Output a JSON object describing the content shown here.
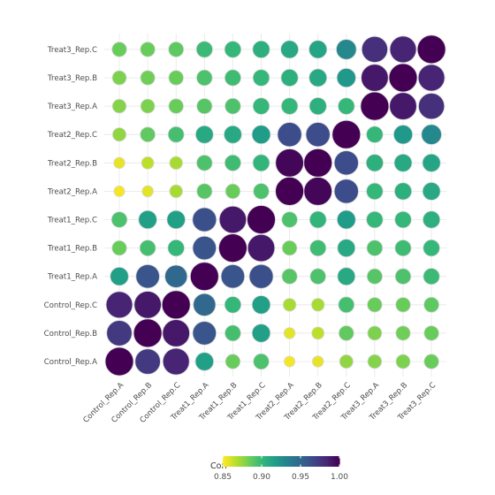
{
  "chart_data": {
    "type": "heatmap",
    "style": "bubble correlation matrix",
    "title": "",
    "xlabel": "",
    "ylabel": "",
    "grid": true,
    "x_categories": [
      "Control_Rep.A",
      "Control_Rep.B",
      "Control_Rep.C",
      "Treat1_Rep.A",
      "Treat1_Rep.B",
      "Treat1_Rep.C",
      "Treat2_Rep.A",
      "Treat2_Rep.B",
      "Treat2_Rep.C",
      "Treat3_Rep.A",
      "Treat3_Rep.B",
      "Treat3_Rep.C"
    ],
    "y_categories": [
      "Control_Rep.A",
      "Control_Rep.B",
      "Control_Rep.C",
      "Treat1_Rep.A",
      "Treat1_Rep.B",
      "Treat1_Rep.C",
      "Treat2_Rep.A",
      "Treat2_Rep.B",
      "Treat2_Rep.C",
      "Treat3_Rep.A",
      "Treat3_Rep.B",
      "Treat3_Rep.C"
    ],
    "values": [
      [
        1.0,
        0.975,
        0.985,
        0.915,
        0.885,
        0.893,
        0.852,
        0.855,
        0.875,
        0.878,
        0.88,
        0.885
      ],
      [
        0.975,
        1.0,
        0.99,
        0.96,
        0.895,
        0.915,
        0.856,
        0.865,
        0.887,
        0.88,
        0.883,
        0.885
      ],
      [
        0.985,
        0.99,
        1.0,
        0.95,
        0.9,
        0.915,
        0.87,
        0.87,
        0.895,
        0.885,
        0.885,
        0.888
      ],
      [
        0.915,
        0.96,
        0.95,
        1.0,
        0.96,
        0.963,
        0.89,
        0.893,
        0.91,
        0.89,
        0.893,
        0.898
      ],
      [
        0.885,
        0.895,
        0.9,
        0.96,
        1.0,
        0.99,
        0.885,
        0.897,
        0.91,
        0.893,
        0.897,
        0.9
      ],
      [
        0.893,
        0.915,
        0.915,
        0.963,
        0.99,
        1.0,
        0.893,
        0.902,
        0.917,
        0.9,
        0.9,
        0.905
      ],
      [
        0.852,
        0.856,
        0.87,
        0.89,
        0.885,
        0.893,
        1.0,
        0.998,
        0.965,
        0.9,
        0.905,
        0.91
      ],
      [
        0.855,
        0.865,
        0.87,
        0.893,
        0.897,
        0.902,
        0.998,
        1.0,
        0.965,
        0.905,
        0.91,
        0.912
      ],
      [
        0.875,
        0.887,
        0.895,
        0.91,
        0.91,
        0.917,
        0.965,
        0.965,
        1.0,
        0.9,
        0.92,
        0.93
      ],
      [
        0.878,
        0.88,
        0.885,
        0.89,
        0.893,
        0.9,
        0.9,
        0.905,
        0.9,
        1.0,
        0.99,
        0.98
      ],
      [
        0.88,
        0.883,
        0.885,
        0.893,
        0.897,
        0.9,
        0.905,
        0.91,
        0.92,
        0.99,
        1.0,
        0.985
      ],
      [
        0.885,
        0.885,
        0.888,
        0.898,
        0.9,
        0.905,
        0.91,
        0.912,
        0.93,
        0.98,
        0.985,
        1.0
      ]
    ],
    "legend": {
      "title": "Corr",
      "placement": "bottom",
      "ticks": [
        0.85,
        0.9,
        0.95,
        1.0
      ],
      "tick_labels": [
        "0.85",
        "0.90",
        "0.95",
        "1.00"
      ],
      "min": 0.85,
      "max": 1.0
    },
    "colormap": [
      "#fde725",
      "#b5de2b",
      "#6ece58",
      "#35b779",
      "#1f9e89",
      "#26828e",
      "#31688e",
      "#3e4989",
      "#482878",
      "#440154"
    ]
  }
}
